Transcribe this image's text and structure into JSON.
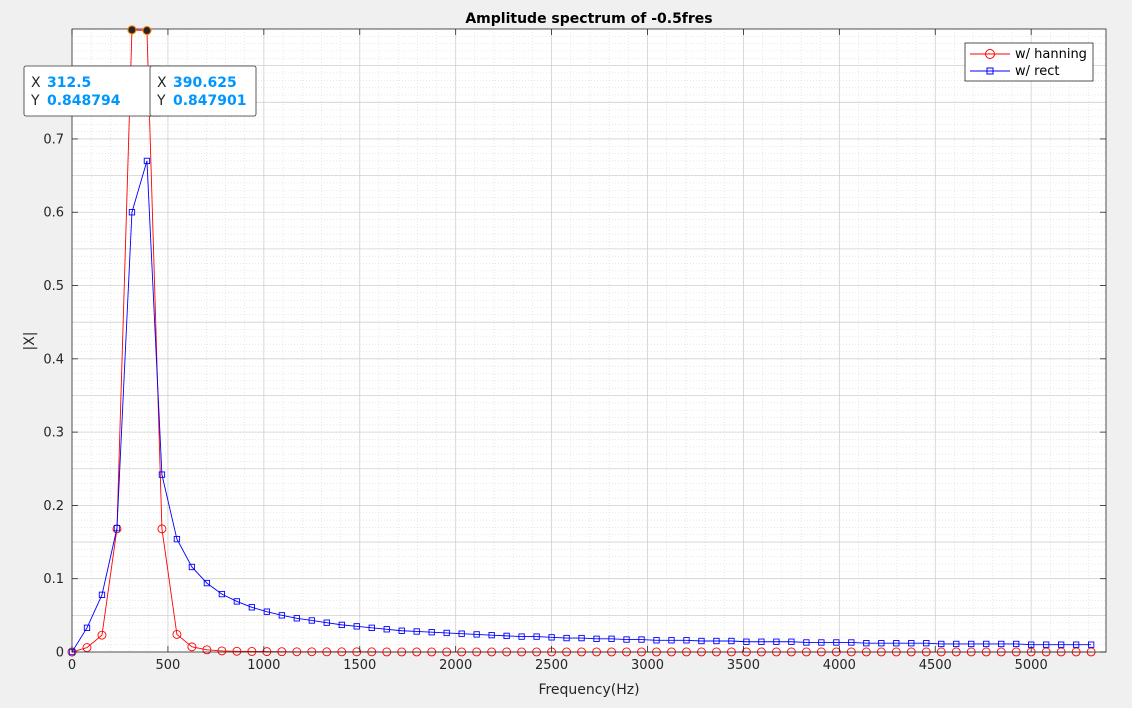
{
  "chart_data": {
    "type": "line",
    "title": "Amplitude spectrum of -0.5fres",
    "xlabel": "Frequency(Hz)",
    "ylabel": "|X|",
    "xlim": [
      0,
      5390
    ],
    "ylim": [
      0,
      0.85
    ],
    "x_ticks": [
      0,
      500,
      1000,
      1500,
      2000,
      2500,
      3000,
      3500,
      4000,
      4500,
      5000
    ],
    "y_ticks": [
      0,
      0.1,
      0.2,
      0.3,
      0.4,
      0.5,
      0.6,
      0.7
    ],
    "x_tick_labels": [
      "0",
      "500",
      "1000",
      "1500",
      "2000",
      "2500",
      "3000",
      "3500",
      "4000",
      "4500",
      "5000"
    ],
    "y_tick_labels": [
      "0",
      "0.1",
      "0.2",
      "0.3",
      "0.4",
      "0.5",
      "0.6",
      "0.7"
    ],
    "grid": true,
    "minor_grid": true,
    "legend_position": "top-right",
    "x_step": 78.125,
    "series": [
      {
        "name": "w/ hanning",
        "color": "#ff0000",
        "marker": "circle",
        "values": [
          0.0,
          0.006,
          0.023,
          0.168,
          0.848794,
          0.847901,
          0.168,
          0.024,
          0.007,
          0.003,
          0.0015,
          0.001,
          0.0007,
          0.0005,
          0.0004,
          0.0003,
          0.0003,
          0.0002,
          0.0002,
          0.0002,
          0.0002,
          0.0001,
          0.0001,
          0.0001,
          0.0001,
          0.0001,
          0.0001,
          0.0001,
          0.0001,
          0.0001,
          0.0001,
          0.0001,
          0.0001,
          0.0001,
          0.0001,
          0.0001,
          0.0001,
          0.0001,
          0.0001,
          0.0001,
          0.0001,
          0.0001,
          0.0001,
          0.0001,
          0.0001,
          0.0001,
          0.0001,
          0.0001,
          0.0001,
          0.0001,
          0.0001,
          0.0001,
          0.0001,
          0.0001,
          0.0001,
          0.0001,
          0.0001,
          0.0001,
          0.0001,
          0.0001,
          0.0001,
          0.0001,
          0.0001,
          0.0001,
          0.0001,
          0.0001,
          0.0001,
          0.0001,
          0.0001
        ]
      },
      {
        "name": "w/ rect",
        "color": "#0000ff",
        "marker": "square",
        "values": [
          0.0,
          0.033,
          0.078,
          0.169,
          0.6,
          0.67,
          0.242,
          0.154,
          0.116,
          0.094,
          0.079,
          0.069,
          0.061,
          0.055,
          0.05,
          0.046,
          0.043,
          0.04,
          0.037,
          0.035,
          0.033,
          0.031,
          0.029,
          0.028,
          0.027,
          0.026,
          0.025,
          0.024,
          0.023,
          0.022,
          0.021,
          0.021,
          0.02,
          0.019,
          0.019,
          0.018,
          0.018,
          0.017,
          0.017,
          0.016,
          0.016,
          0.016,
          0.015,
          0.015,
          0.015,
          0.014,
          0.014,
          0.014,
          0.014,
          0.013,
          0.013,
          0.013,
          0.013,
          0.012,
          0.012,
          0.012,
          0.012,
          0.012,
          0.011,
          0.011,
          0.011,
          0.011,
          0.011,
          0.011,
          0.01,
          0.01,
          0.01,
          0.01,
          0.01
        ]
      }
    ],
    "annotations": [
      {
        "x_label": "X",
        "x_value": "312.5",
        "y_label": "Y",
        "y_value": "0.848794",
        "x": 312.5,
        "y": 0.848794
      },
      {
        "x_label": "X",
        "x_value": "390.625",
        "y_label": "Y",
        "y_value": "0.847901",
        "x": 390.625,
        "y": 0.847901
      }
    ]
  }
}
